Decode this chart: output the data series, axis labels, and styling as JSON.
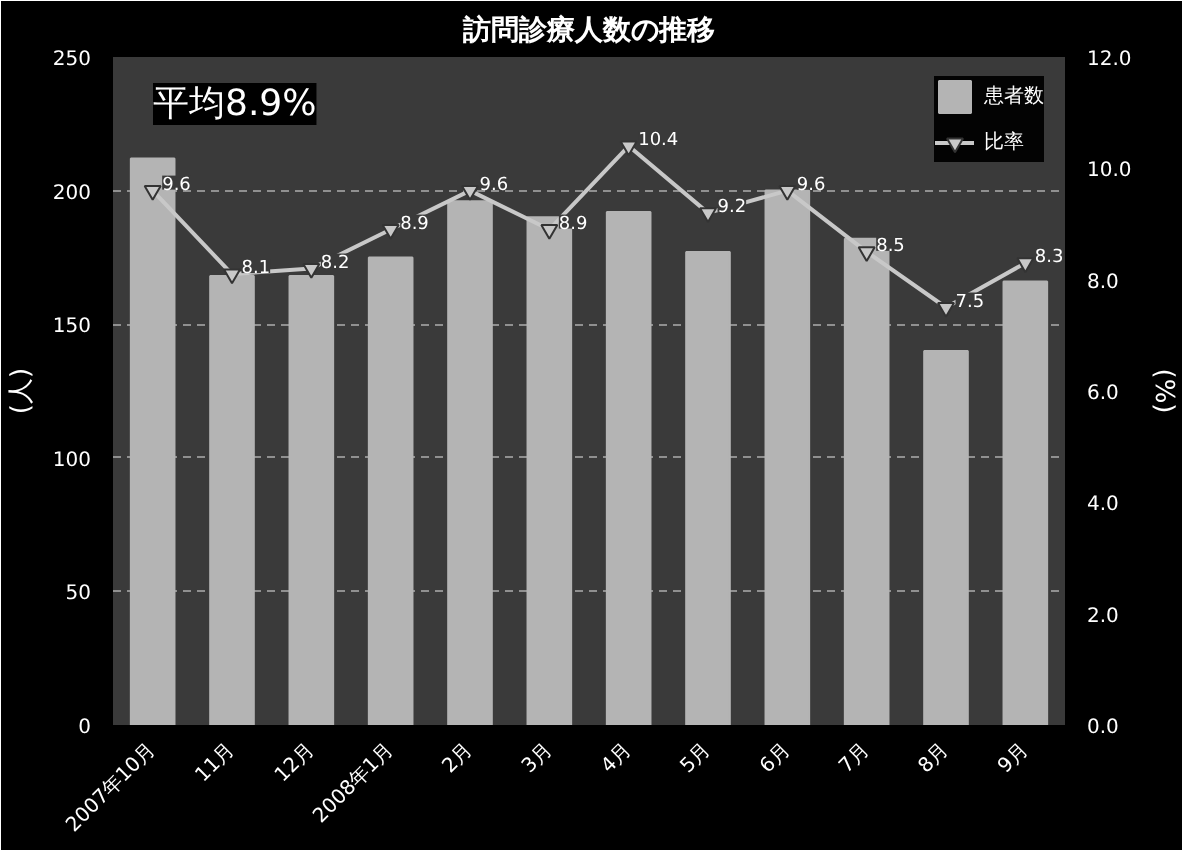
{
  "chart_data": {
    "type": "bar",
    "title": "訪問診療人数の推移",
    "ylabel": "(人)",
    "y2label": "(%)",
    "categories": [
      "2007年10月",
      "11月",
      "12月",
      "2008年1月",
      "2月",
      "3月",
      "4月",
      "5月",
      "6月",
      "7月",
      "8月",
      "9月"
    ],
    "series": [
      {
        "name": "患者数",
        "color": "#b4b4b4",
        "values": [
          212,
          168,
          168,
          175,
          196,
          190,
          192,
          177,
          200,
          182,
          140,
          166
        ]
      },
      {
        "name": "比率",
        "type": "line",
        "axis": "y2",
        "color": "#c8c8c8",
        "marker": "triangle",
        "values": [
          9.6,
          8.1,
          8.2,
          8.9,
          9.6,
          8.9,
          10.4,
          9.2,
          9.6,
          8.5,
          7.5,
          8.3
        ],
        "value_labels": [
          "9.6",
          "8.1",
          "8.2",
          "8.9",
          "9.6",
          "8.9",
          "10.4",
          "9.2",
          "9.6",
          "8.5",
          "7.5",
          "8.3"
        ]
      }
    ],
    "ylim": [
      0,
      250
    ],
    "yticks": [
      0,
      50,
      100,
      150,
      200,
      250
    ],
    "y2lim": [
      0,
      12
    ],
    "y2ticks": [
      {
        "value": 0,
        "label": "0.0"
      },
      {
        "value": 2,
        "label": "2.0"
      },
      {
        "value": 4,
        "label": "4.0"
      },
      {
        "value": 6,
        "label": "6.0"
      },
      {
        "value": 8,
        "label": "8.0"
      },
      {
        "value": 10,
        "label": "10.0"
      },
      {
        "value": 12,
        "label": "12.0"
      }
    ],
    "annotations": [
      "平均8.9%"
    ],
    "grid": "y",
    "legend": "top right"
  }
}
